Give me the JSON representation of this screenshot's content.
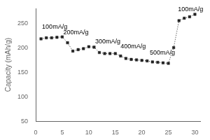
{
  "chart_data": {
    "type": "line",
    "ylabel": "Capacity (mAh/g)",
    "x": [
      1,
      2,
      3,
      4,
      5,
      6,
      7,
      8,
      9,
      10,
      11,
      12,
      13,
      14,
      15,
      16,
      17,
      18,
      19,
      20,
      21,
      22,
      23,
      24,
      25,
      26,
      27,
      28,
      29,
      30
    ],
    "values": [
      218,
      220,
      220,
      221,
      222,
      210,
      193,
      196,
      198,
      202,
      201,
      190,
      188,
      188,
      188,
      183,
      178,
      176,
      175,
      174,
      173,
      171,
      170,
      169,
      168,
      200,
      255,
      260,
      263,
      268
    ],
    "color": "#222222",
    "marker": "square",
    "line_style": "dotted",
    "xlim": [
      0,
      31
    ],
    "ylim": [
      50,
      280
    ],
    "xticks": [
      0,
      5,
      10,
      15,
      20,
      25,
      30
    ],
    "yticks": [
      50,
      100,
      150,
      200,
      250
    ],
    "grid": false,
    "annotations": [
      {
        "text": "100mA/g",
        "x": 1.2,
        "y": 236
      },
      {
        "text": "200mA/g",
        "x": 5.2,
        "y": 224
      },
      {
        "text": "300mA/g",
        "x": 11.2,
        "y": 206
      },
      {
        "text": "400mA/g",
        "x": 16.0,
        "y": 196
      },
      {
        "text": "500mA/g",
        "x": 21.5,
        "y": 183
      },
      {
        "text": "100mA/g",
        "x": 26.8,
        "y": 272
      }
    ]
  }
}
